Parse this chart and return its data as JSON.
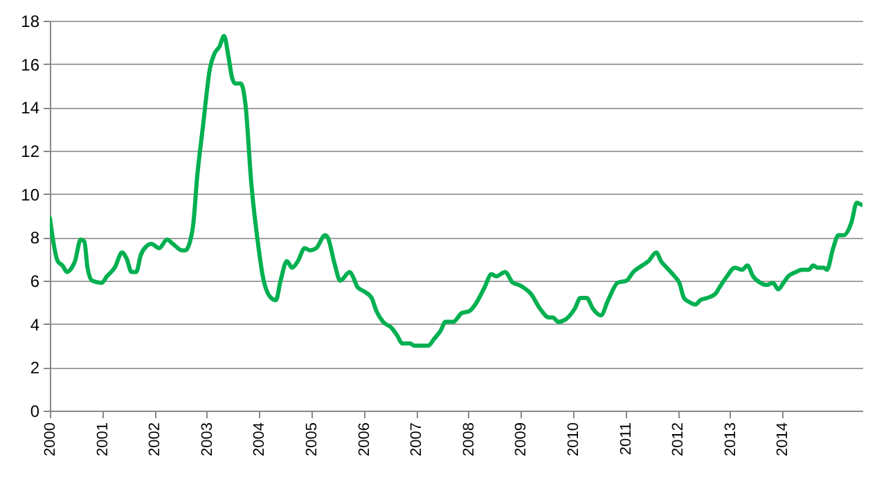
{
  "chart_data": {
    "type": "line",
    "x": [
      2000.0,
      2000.15,
      2000.24,
      2000.33,
      2000.39,
      2000.48,
      2000.59,
      2000.66,
      2000.72,
      2000.81,
      2000.99,
      2001.09,
      2001.24,
      2001.38,
      2001.47,
      2001.56,
      2001.65,
      2001.74,
      2001.85,
      2001.94,
      2002.09,
      2002.24,
      2002.35,
      2002.53,
      2002.59,
      2002.73,
      2002.82,
      2002.93,
      2003.06,
      2003.15,
      2003.24,
      2003.33,
      2003.41,
      2003.48,
      2003.54,
      2003.65,
      2003.74,
      2003.85,
      2003.99,
      2004.07,
      2004.23,
      2004.32,
      2004.41,
      2004.53,
      2004.63,
      2004.74,
      2004.87,
      2004.97,
      2005.09,
      2005.26,
      2005.31,
      2005.44,
      2005.55,
      2005.73,
      2005.79,
      2005.88,
      2006.01,
      2006.15,
      2006.24,
      2006.37,
      2006.54,
      2006.63,
      2006.74,
      2006.88,
      2006.97,
      2007.09,
      2007.23,
      2007.34,
      2007.47,
      2007.56,
      2007.71,
      2007.87,
      2008.02,
      2008.13,
      2008.31,
      2008.44,
      2008.53,
      2008.7,
      2008.85,
      2008.97,
      2009.1,
      2009.19,
      2009.37,
      2009.54,
      2009.61,
      2009.72,
      2009.85,
      2010.03,
      2010.14,
      2010.26,
      2010.38,
      2010.53,
      2010.67,
      2010.85,
      2011.02,
      2011.15,
      2011.32,
      2011.44,
      2011.59,
      2011.68,
      2011.79,
      2011.94,
      2012.03,
      2012.12,
      2012.23,
      2012.34,
      2012.43,
      2012.56,
      2012.72,
      2012.8,
      2012.94,
      2013.09,
      2013.23,
      2013.33,
      2013.44,
      2013.58,
      2013.7,
      2013.82,
      2013.92,
      2014.02,
      2014.11,
      2014.26,
      2014.37,
      2014.5,
      2014.59,
      2014.67,
      2014.79,
      2014.85,
      2014.97,
      2015.07,
      2015.17,
      2015.32,
      2015.42,
      2015.51
    ],
    "series": [
      {
        "color": "#00b050",
        "values": [
          8.9,
          6.9,
          6.7,
          6.4,
          6.5,
          6.9,
          7.9,
          7.8,
          6.6,
          6.0,
          5.9,
          6.2,
          6.6,
          7.3,
          7.0,
          6.4,
          6.4,
          7.2,
          7.6,
          7.7,
          7.5,
          7.9,
          7.7,
          7.4,
          7.4,
          8.4,
          10.9,
          13.2,
          15.8,
          16.5,
          16.8,
          17.3,
          16.4,
          15.4,
          15.1,
          15.1,
          14.1,
          10.5,
          7.5,
          6.2,
          5.2,
          5.1,
          6.0,
          6.9,
          6.6,
          6.9,
          7.5,
          7.4,
          7.5,
          8.1,
          8.0,
          6.8,
          6.0,
          6.4,
          6.2,
          5.7,
          5.5,
          5.2,
          4.6,
          4.1,
          3.8,
          3.5,
          3.1,
          3.1,
          3.0,
          3.0,
          3.0,
          3.3,
          3.7,
          4.1,
          4.1,
          4.5,
          4.6,
          4.9,
          5.7,
          6.3,
          6.2,
          6.4,
          5.9,
          5.8,
          5.6,
          5.4,
          4.7,
          4.3,
          4.3,
          4.1,
          4.2,
          4.7,
          5.2,
          5.2,
          4.7,
          4.4,
          5.1,
          5.9,
          6.0,
          6.4,
          6.7,
          6.9,
          7.3,
          6.9,
          6.6,
          6.2,
          5.9,
          5.2,
          5.0,
          4.9,
          5.1,
          5.2,
          5.4,
          5.7,
          6.2,
          6.6,
          6.5,
          6.7,
          6.2,
          5.9,
          5.8,
          5.9,
          5.6,
          5.9,
          6.2,
          6.4,
          6.5,
          6.5,
          6.7,
          6.6,
          6.6,
          6.5,
          7.5,
          8.1,
          8.1,
          8.7,
          9.6,
          9.5
        ]
      }
    ],
    "xlim": [
      2000,
      2015.53
    ],
    "xticks": [
      2000,
      2001,
      2002,
      2003,
      2004,
      2005,
      2006,
      2007,
      2008,
      2009,
      2010,
      2011,
      2012,
      2013,
      2014
    ],
    "ylim": [
      0,
      18
    ],
    "yticks": [
      0,
      2,
      4,
      6,
      8,
      10,
      12,
      14,
      16,
      18
    ],
    "grid": "y",
    "line_style": "solid"
  }
}
